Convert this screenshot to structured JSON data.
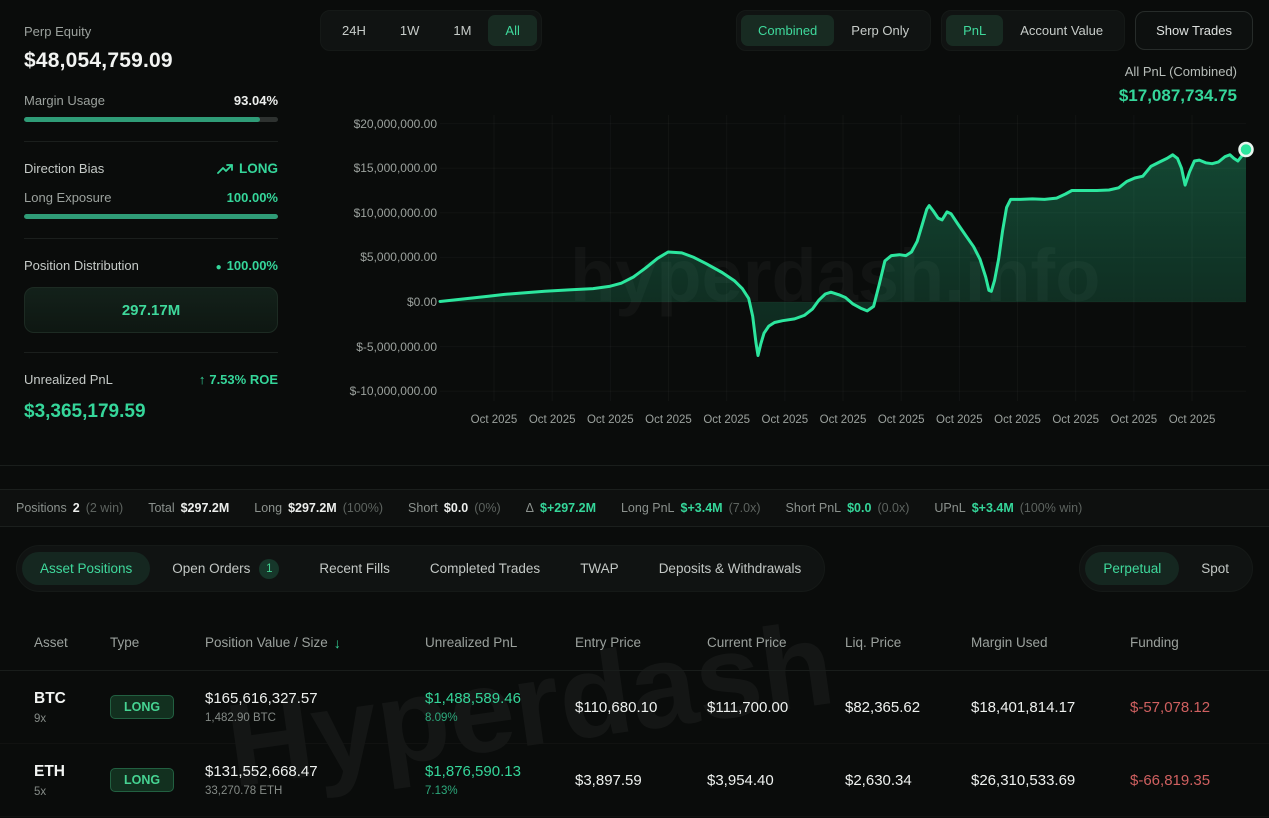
{
  "accent_colors": {
    "green": "#35d69a",
    "line_green": "#2ce69e",
    "red": "#cf6060"
  },
  "sidebar": {
    "perp_equity_label": "Perp Equity",
    "perp_equity_value": "$48,054,759.09",
    "margin_usage_label": "Margin Usage",
    "margin_usage_value": "93.04%",
    "margin_usage_pct": 93.04,
    "direction_bias_label": "Direction Bias",
    "direction_bias_value": "LONG",
    "long_exposure_label": "Long Exposure",
    "long_exposure_value": "100.00%",
    "long_exposure_pct": 100,
    "position_distribution_label": "Position Distribution",
    "position_distribution_value": "100.00%",
    "position_distribution_dot": "●",
    "position_distribution_total": "297.17M",
    "unrealized_pnl_label": "Unrealized PnL",
    "unrealized_pnl_roe_arrow": "↑",
    "unrealized_pnl_roe": "7.53% ROE",
    "unrealized_pnl_value": "$3,365,179.59"
  },
  "chart_header": {
    "time_tabs": [
      "24H",
      "1W",
      "1M",
      "All"
    ],
    "time_tab_active": "All",
    "mode_tabs": [
      "Combined",
      "Perp Only"
    ],
    "mode_tab_active": "Combined",
    "metric_tabs": [
      "PnL",
      "Account Value"
    ],
    "metric_tab_active": "PnL",
    "show_trades_label": "Show Trades",
    "all_pnl_label": "All PnL (Combined)",
    "all_pnl_value": "$17,087,734.75"
  },
  "chart_data": {
    "type": "area",
    "title": "All PnL (Combined)",
    "watermark": "hyperdash.info",
    "unit": "USD millions",
    "ylim_millions": [
      -11.1,
      20.96
    ],
    "grid": true,
    "legend": "none",
    "y_ticks": [
      {
        "label": "$20,000,000.00",
        "value": 20
      },
      {
        "label": "$15,000,000.00",
        "value": 15
      },
      {
        "label": "$10,000,000.00",
        "value": 10
      },
      {
        "label": "$5,000,000.00",
        "value": 5
      },
      {
        "label": "$0.00",
        "value": 0
      },
      {
        "label": "$-5,000,000.00",
        "value": -5
      },
      {
        "label": "$-10,000,000.00",
        "value": -10
      }
    ],
    "x_ticks": [
      "Oct 2025",
      "Oct 2025",
      "Oct 2025",
      "Oct 2025",
      "Oct 2025",
      "Oct 2025",
      "Oct 2025",
      "Oct 2025",
      "Oct 2025",
      "Oct 2025",
      "Oct 2025",
      "Oct 2025",
      "Oct 2025"
    ],
    "end_value_usd": 17087734.75,
    "series": [
      {
        "name": "All PnL (Combined)",
        "points": [
          [
            0.0,
            0.05
          ],
          [
            0.02,
            0.25
          ],
          [
            0.04,
            0.45
          ],
          [
            0.06,
            0.65
          ],
          [
            0.08,
            0.85
          ],
          [
            0.1,
            1.0
          ],
          [
            0.13,
            1.2
          ],
          [
            0.16,
            1.35
          ],
          [
            0.19,
            1.5
          ],
          [
            0.21,
            1.75
          ],
          [
            0.225,
            2.1
          ],
          [
            0.24,
            2.8
          ],
          [
            0.255,
            3.8
          ],
          [
            0.27,
            4.9
          ],
          [
            0.283,
            5.6
          ],
          [
            0.3,
            5.5
          ],
          [
            0.315,
            5.0
          ],
          [
            0.33,
            4.3
          ],
          [
            0.35,
            3.3
          ],
          [
            0.365,
            2.4
          ],
          [
            0.375,
            1.5
          ],
          [
            0.383,
            0.4
          ],
          [
            0.388,
            -1.6
          ],
          [
            0.392,
            -4.6
          ],
          [
            0.3945,
            -6.0
          ],
          [
            0.398,
            -4.7
          ],
          [
            0.402,
            -3.5
          ],
          [
            0.408,
            -2.7
          ],
          [
            0.415,
            -2.3
          ],
          [
            0.425,
            -2.1
          ],
          [
            0.44,
            -1.9
          ],
          [
            0.452,
            -1.5
          ],
          [
            0.462,
            -0.8
          ],
          [
            0.47,
            0.2
          ],
          [
            0.478,
            0.9
          ],
          [
            0.485,
            1.1
          ],
          [
            0.495,
            0.8
          ],
          [
            0.503,
            0.5
          ],
          [
            0.512,
            -0.2
          ],
          [
            0.522,
            -0.7
          ],
          [
            0.53,
            -1.0
          ],
          [
            0.538,
            -0.5
          ],
          [
            0.545,
            2.0
          ],
          [
            0.552,
            4.6
          ],
          [
            0.56,
            5.2
          ],
          [
            0.57,
            5.3
          ],
          [
            0.578,
            5.2
          ],
          [
            0.585,
            5.6
          ],
          [
            0.592,
            6.8
          ],
          [
            0.598,
            8.6
          ],
          [
            0.604,
            10.4
          ],
          [
            0.607,
            10.8
          ],
          [
            0.612,
            10.2
          ],
          [
            0.618,
            9.4
          ],
          [
            0.623,
            9.2
          ],
          [
            0.629,
            10.1
          ],
          [
            0.634,
            9.9
          ],
          [
            0.642,
            8.8
          ],
          [
            0.652,
            7.5
          ],
          [
            0.662,
            6.2
          ],
          [
            0.67,
            4.8
          ],
          [
            0.677,
            2.8
          ],
          [
            0.681,
            1.3
          ],
          [
            0.684,
            1.2
          ],
          [
            0.688,
            2.4
          ],
          [
            0.693,
            4.8
          ],
          [
            0.698,
            8.0
          ],
          [
            0.703,
            10.6
          ],
          [
            0.708,
            11.5
          ],
          [
            0.72,
            11.5
          ],
          [
            0.735,
            11.55
          ],
          [
            0.75,
            11.5
          ],
          [
            0.765,
            11.65
          ],
          [
            0.776,
            12.1
          ],
          [
            0.784,
            12.5
          ],
          [
            0.8,
            12.5
          ],
          [
            0.815,
            12.5
          ],
          [
            0.83,
            12.55
          ],
          [
            0.842,
            12.8
          ],
          [
            0.852,
            13.5
          ],
          [
            0.862,
            13.9
          ],
          [
            0.872,
            14.1
          ],
          [
            0.882,
            15.2
          ],
          [
            0.893,
            15.7
          ],
          [
            0.902,
            16.1
          ],
          [
            0.909,
            16.5
          ],
          [
            0.915,
            16.1
          ],
          [
            0.92,
            15.0
          ],
          [
            0.9245,
            13.1
          ],
          [
            0.93,
            14.6
          ],
          [
            0.936,
            15.8
          ],
          [
            0.942,
            15.9
          ],
          [
            0.95,
            15.6
          ],
          [
            0.958,
            15.5
          ],
          [
            0.966,
            15.7
          ],
          [
            0.974,
            16.3
          ],
          [
            0.98,
            16.5
          ],
          [
            0.985,
            16.1
          ],
          [
            0.99,
            15.8
          ],
          [
            0.995,
            16.4
          ],
          [
            1.0,
            17.09
          ]
        ]
      }
    ]
  },
  "summary_bar": {
    "items": [
      {
        "label": "Positions",
        "value": "2",
        "extra": "(2 win)"
      },
      {
        "label": "Total",
        "value": "$297.2M",
        "extra": ""
      },
      {
        "label": "Long",
        "value": "$297.2M",
        "extra": "(100%)"
      },
      {
        "label": "Short",
        "value": "$0.0",
        "extra": "(0%)"
      },
      {
        "label": "Δ",
        "value": "$+297.2M",
        "extra": ""
      },
      {
        "label": "Long PnL",
        "value": "$+3.4M",
        "extra": "(7.0x)"
      },
      {
        "label": "Short PnL",
        "value": "$0.0",
        "extra": "(0.0x)"
      },
      {
        "label": "UPnL",
        "value": "$+3.4M",
        "extra": "(100% win)"
      }
    ]
  },
  "tabs": {
    "items": [
      {
        "label": "Asset Positions",
        "active": true
      },
      {
        "label": "Open Orders",
        "badge": "1"
      },
      {
        "label": "Recent Fills"
      },
      {
        "label": "Completed Trades"
      },
      {
        "label": "TWAP"
      },
      {
        "label": "Deposits & Withdrawals"
      }
    ],
    "market_toggle": [
      {
        "label": "Perpetual",
        "active": true
      },
      {
        "label": "Spot"
      }
    ]
  },
  "table": {
    "watermark": "Hyperdash",
    "sort_arrow": "↓",
    "columns": [
      "Asset",
      "Type",
      "Position Value / Size",
      "Unrealized PnL",
      "Entry Price",
      "Current Price",
      "Liq. Price",
      "Margin Used",
      "Funding"
    ],
    "rows": [
      {
        "asset": "BTC",
        "leverage": "9x",
        "type": "LONG",
        "position_value": "$165,616,327.57",
        "size": "1,482.90 BTC",
        "upnl": "$1,488,589.46",
        "upnl_pct": "8.09%",
        "entry": "$110,680.10",
        "current": "$111,700.00",
        "liq": "$82,365.62",
        "margin": "$18,401,814.17",
        "funding": "$-57,078.12"
      },
      {
        "asset": "ETH",
        "leverage": "5x",
        "type": "LONG",
        "position_value": "$131,552,668.47",
        "size": "33,270.78 ETH",
        "upnl": "$1,876,590.13",
        "upnl_pct": "7.13%",
        "entry": "$3,897.59",
        "current": "$3,954.40",
        "liq": "$2,630.34",
        "margin": "$26,310,533.69",
        "funding": "$-66,819.35"
      }
    ]
  }
}
